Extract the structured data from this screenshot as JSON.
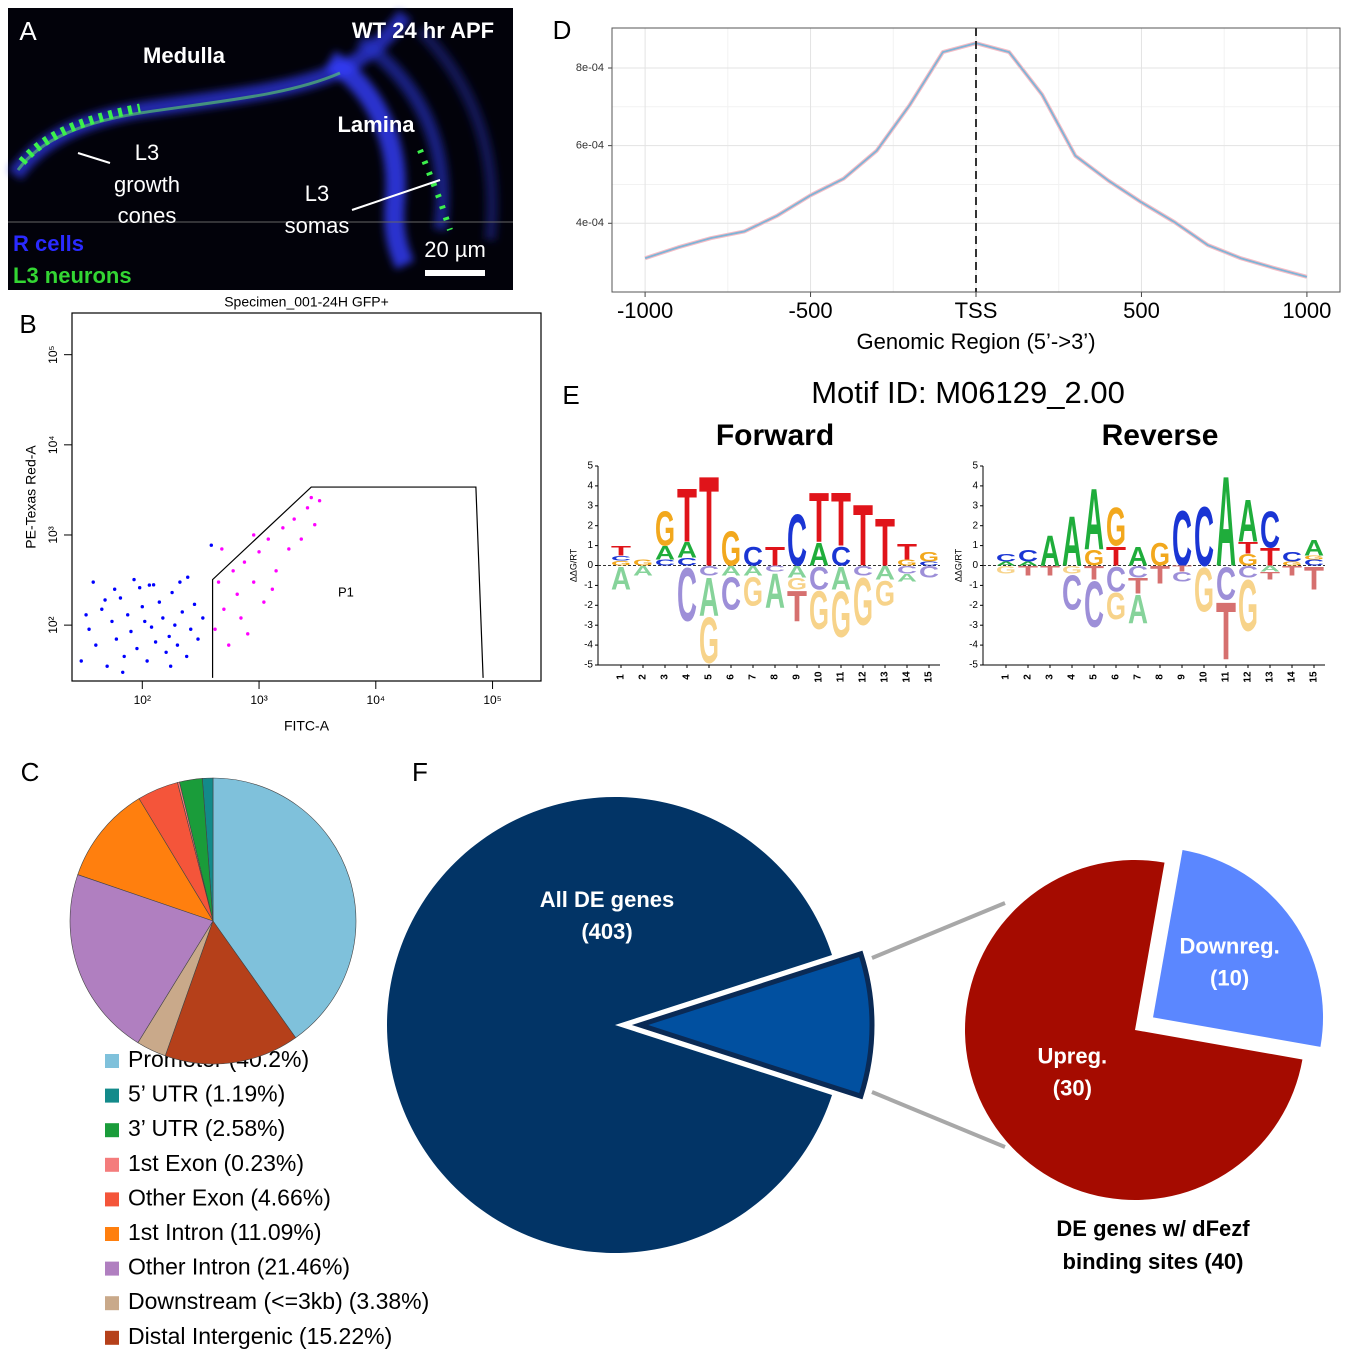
{
  "panel_labels": [
    "A",
    "B",
    "C",
    "D",
    "E",
    "F"
  ],
  "micrograph": {
    "condition": "WT 24 hr APF",
    "regions": [
      "Medulla",
      "Lamina"
    ],
    "annotations": [
      [
        "L3",
        "growth",
        "cones"
      ],
      [
        "L3",
        "somas"
      ]
    ],
    "channels": [
      {
        "name": "R cells",
        "color": "#2a2aff"
      },
      {
        "name": "L3 neurons",
        "color": "#33d633"
      }
    ],
    "scale_bar": "20 µm"
  },
  "motif_title": "Motif ID: M06129_2.00",
  "chart_data": [
    {
      "type": "scatter",
      "title": "Specimen_001-24H GFP+",
      "x_label": "FITC-A",
      "y_label": "PE-Texas Red-A",
      "log_x": true,
      "log_y": true,
      "xlim": [
        25,
        260000
      ],
      "ylim": [
        24,
        290000
      ],
      "xticks": [
        {
          "value": 100,
          "label": "10²"
        },
        {
          "value": 1000,
          "label": "10³"
        },
        {
          "value": 10000,
          "label": "10⁴"
        },
        {
          "value": 100000,
          "label": "10⁵"
        }
      ],
      "yticks": [
        {
          "value": 100,
          "label": "10²"
        },
        {
          "value": 1000,
          "label": "10³"
        },
        {
          "value": 10000,
          "label": "10⁴"
        },
        {
          "value": 100000,
          "label": "10⁵"
        }
      ],
      "series": [
        {
          "color": "#0000ff",
          "x": [
            30,
            35,
            40,
            45,
            50,
            55,
            60,
            65,
            70,
            75,
            80,
            90,
            95,
            100,
            110,
            120,
            130,
            140,
            150,
            160,
            170,
            180,
            190,
            200,
            220,
            240,
            260,
            280,
            300,
            330,
            38,
            58,
            85,
            125,
            33,
            48,
            68,
            105,
            175,
            210,
            245,
            390,
            115
          ],
          "y": [
            40,
            90,
            60,
            150,
            35,
            110,
            70,
            200,
            45,
            130,
            85,
            55,
            260,
            160,
            40,
            95,
            65,
            180,
            120,
            50,
            75,
            230,
            100,
            60,
            140,
            45,
            90,
            170,
            70,
            120,
            300,
            250,
            320,
            280,
            130,
            190,
            30,
            110,
            35,
            300,
            340,
            770,
            278
          ]
        },
        {
          "color": "#ff00ff",
          "x": [
            420,
            450,
            500,
            550,
            600,
            650,
            700,
            750,
            800,
            900,
            1000,
            1100,
            1200,
            1400,
            1600,
            1800,
            2000,
            2300,
            2600,
            3000,
            3300,
            2800,
            1300,
            480,
            900
          ],
          "y": [
            90,
            300,
            150,
            60,
            400,
            220,
            120,
            500,
            80,
            300,
            650,
            180,
            900,
            400,
            1200,
            700,
            1500,
            900,
            2000,
            1300,
            2400,
            2600,
            250,
            700,
            1000
          ]
        }
      ],
      "gate": {
        "label": "P1",
        "x": [
          400,
          400,
          2800,
          72000,
          83000
        ],
        "y": [
          26,
          320,
          3400,
          3400,
          26
        ]
      }
    },
    {
      "type": "pie",
      "categories": [
        "Promoter",
        "5’ UTR",
        "3’ UTR",
        "1st Exon",
        "Other Exon",
        "1st Intron",
        "Other Intron",
        "Downstream (<=3kb)",
        "Distal Intergenic"
      ],
      "values": [
        40.2,
        1.19,
        2.58,
        0.23,
        4.66,
        11.09,
        21.46,
        3.38,
        15.22
      ],
      "value_labels": [
        "(40.2%)",
        "(1.19%)",
        "(2.58%)",
        "(0.23%)",
        "(4.66%)",
        "(11.09%)",
        "(21.46%)",
        "(3.38%)",
        "(15.22%)"
      ],
      "colors": [
        "#7fc1db",
        "#138a8a",
        "#1a9c3a",
        "#f47c7c",
        "#f4553a",
        "#ff7f0e",
        "#b07fc0",
        "#c9a98a",
        "#b5401a"
      ]
    },
    {
      "type": "line",
      "x_label": "Genomic Region (5’->3’)",
      "xlim": [
        -1100,
        1100
      ],
      "ylim": [
        0.000223,
        0.000903
      ],
      "xticks": [
        -1000,
        -500,
        {
          "value": 0,
          "label": "TSS"
        },
        500,
        1000
      ],
      "yticks": [
        {
          "value": 0.0004,
          "label": "4e-04"
        },
        {
          "value": 0.0006,
          "label": "6e-04"
        },
        {
          "value": 0.0008,
          "label": "8e-04"
        }
      ],
      "grid": true,
      "vline": 0,
      "x": [
        -1000,
        -900,
        -800,
        -700,
        -600,
        -500,
        -400,
        -300,
        -200,
        -100,
        0,
        100,
        200,
        300,
        400,
        500,
        600,
        700,
        800,
        900,
        1000
      ],
      "series": [
        {
          "color": "#7fb4d6",
          "values": [
            0.00031,
            0.000338,
            0.000362,
            0.000379,
            0.00042,
            0.000472,
            0.000515,
            0.000587,
            0.000705,
            0.000841,
            0.000864,
            0.000841,
            0.000731,
            0.000574,
            0.00051,
            0.000454,
            0.000403,
            0.000344,
            0.00031,
            0.000285,
            0.000262
          ]
        }
      ]
    },
    {
      "type": "logo",
      "title": "Forward",
      "y_label": "ΔΔG/RT",
      "ylim": [
        -5,
        5
      ],
      "yticks": [
        -5,
        -4,
        -3,
        -2,
        -1,
        0,
        1,
        2,
        3,
        4,
        5
      ],
      "xticks": [
        1,
        2,
        3,
        4,
        5,
        6,
        7,
        8,
        9,
        10,
        11,
        12,
        13,
        14,
        15
      ],
      "letter_colors": {
        "A": "#1fad3b",
        "C": "#1a35d4",
        "G": "#f2a81d",
        "T": "#e0141a"
      },
      "negative_letter_colors": {
        "A": "#86d39a",
        "C": "#9d8fd8",
        "G": "#f7d38a",
        "T": "#d6706f"
      },
      "positions": [
        [
          {
            "letter": "G",
            "value": 0.25
          },
          {
            "letter": "C",
            "value": 0.25
          },
          {
            "letter": "T",
            "value": 0.5
          },
          {
            "letter": "A",
            "value": -1.2
          }
        ],
        [
          {
            "letter": "G",
            "value": 0.3
          },
          {
            "letter": "A",
            "value": -0.5
          }
        ],
        [
          {
            "letter": "C",
            "value": 0.3
          },
          {
            "letter": "A",
            "value": 0.7
          },
          {
            "letter": "G",
            "value": 1.8
          }
        ],
        [
          {
            "letter": "C",
            "value": 0.4
          },
          {
            "letter": "A",
            "value": 0.8
          },
          {
            "letter": "T",
            "value": 2.8
          },
          {
            "letter": "C",
            "value": -2.8
          }
        ],
        [
          {
            "letter": "T",
            "value": 4.7
          },
          {
            "letter": "C",
            "value": -0.5
          },
          {
            "letter": "A",
            "value": -2
          },
          {
            "letter": "G",
            "value": -2.4
          }
        ],
        [
          {
            "letter": "G",
            "value": 1.8
          },
          {
            "letter": "A",
            "value": -0.5
          },
          {
            "letter": "C",
            "value": -1.7
          }
        ],
        [
          {
            "letter": "C",
            "value": 1
          },
          {
            "letter": "A",
            "value": -0.5
          },
          {
            "letter": "G",
            "value": -1.5
          }
        ],
        [
          {
            "letter": "T",
            "value": 1
          },
          {
            "letter": "C",
            "value": -0.3
          },
          {
            "letter": "A",
            "value": -1.8
          }
        ],
        [
          {
            "letter": "C",
            "value": 2.7
          },
          {
            "letter": "A",
            "value": -0.6
          },
          {
            "letter": "G",
            "value": -0.6
          },
          {
            "letter": "T",
            "value": -1.6
          }
        ],
        [
          {
            "letter": "A",
            "value": 1.2
          },
          {
            "letter": "T",
            "value": 2.6
          },
          {
            "letter": "C",
            "value": -1.2
          },
          {
            "letter": "G",
            "value": -2
          }
        ],
        [
          {
            "letter": "C",
            "value": 1
          },
          {
            "letter": "T",
            "value": 2.8
          },
          {
            "letter": "A",
            "value": -1.2
          },
          {
            "letter": "G",
            "value": -2.4
          }
        ],
        [
          {
            "letter": "T",
            "value": 3.2
          },
          {
            "letter": "C",
            "value": -0.5
          },
          {
            "letter": "G",
            "value": -2.5
          }
        ],
        [
          {
            "letter": "T",
            "value": 2.5
          },
          {
            "letter": "A",
            "value": -0.7
          },
          {
            "letter": "G",
            "value": -1.3
          }
        ],
        [
          {
            "letter": "G",
            "value": 0.3
          },
          {
            "letter": "T",
            "value": 0.8
          },
          {
            "letter": "C",
            "value": -0.4
          },
          {
            "letter": "A",
            "value": -0.4
          }
        ],
        [
          {
            "letter": "C",
            "value": 0.2
          },
          {
            "letter": "G",
            "value": 0.5
          },
          {
            "letter": "C",
            "value": -0.6
          }
        ]
      ]
    },
    {
      "type": "logo",
      "title": "Reverse",
      "y_label": "ΔΔG/RT",
      "ylim": [
        -5,
        5
      ],
      "yticks": [
        -5,
        -4,
        -3,
        -2,
        -1,
        0,
        1,
        2,
        3,
        4,
        5
      ],
      "xticks": [
        1,
        2,
        3,
        4,
        5,
        6,
        7,
        8,
        9,
        10,
        11,
        12,
        13,
        14,
        15
      ],
      "letter_colors": {
        "A": "#1fad3b",
        "C": "#1a35d4",
        "G": "#f2a81d",
        "T": "#e0141a"
      },
      "negative_letter_colors": {
        "A": "#86d39a",
        "C": "#9d8fd8",
        "G": "#f7d38a",
        "T": "#d6706f"
      },
      "positions": [
        [
          {
            "letter": "A",
            "value": 0.2
          },
          {
            "letter": "C",
            "value": 0.4
          },
          {
            "letter": "G",
            "value": -0.4
          }
        ],
        [
          {
            "letter": "A",
            "value": 0.2
          },
          {
            "letter": "C",
            "value": 0.6
          },
          {
            "letter": "T",
            "value": -0.5
          }
        ],
        [
          {
            "letter": "A",
            "value": 1.6
          },
          {
            "letter": "T",
            "value": -0.5
          }
        ],
        [
          {
            "letter": "A",
            "value": 2.6
          },
          {
            "letter": "G",
            "value": -0.4
          },
          {
            "letter": "C",
            "value": -1.8
          }
        ],
        [
          {
            "letter": "G",
            "value": 0.8
          },
          {
            "letter": "A",
            "value": 3.2
          },
          {
            "letter": "T",
            "value": -0.7
          },
          {
            "letter": "C",
            "value": -2.4
          }
        ],
        [
          {
            "letter": "T",
            "value": 1
          },
          {
            "letter": "G",
            "value": 2
          },
          {
            "letter": "C",
            "value": -1.3
          },
          {
            "letter": "G",
            "value": -1.4
          }
        ],
        [
          {
            "letter": "A",
            "value": 1
          },
          {
            "letter": "C",
            "value": -0.6
          },
          {
            "letter": "T",
            "value": -0.8
          },
          {
            "letter": "A",
            "value": -1.5
          }
        ],
        [
          {
            "letter": "G",
            "value": 1.2
          },
          {
            "letter": "T",
            "value": -0.9
          }
        ],
        [
          {
            "letter": "C",
            "value": 2.9
          },
          {
            "letter": "T",
            "value": -0.3
          },
          {
            "letter": "C",
            "value": -0.5
          }
        ],
        [
          {
            "letter": "C",
            "value": 3.1
          },
          {
            "letter": "G",
            "value": -2.3
          }
        ],
        [
          {
            "letter": "A",
            "value": 4.7
          },
          {
            "letter": "C",
            "value": -1.7
          },
          {
            "letter": "T",
            "value": -3
          }
        ],
        [
          {
            "letter": "G",
            "value": 0.6
          },
          {
            "letter": "T",
            "value": 0.6
          },
          {
            "letter": "A",
            "value": 2.2
          },
          {
            "letter": "C",
            "value": -0.6
          },
          {
            "letter": "G",
            "value": -2.7
          }
        ],
        [
          {
            "letter": "T",
            "value": 0.9
          },
          {
            "letter": "C",
            "value": 1.9
          },
          {
            "letter": "A",
            "value": -0.3
          },
          {
            "letter": "T",
            "value": -0.4
          }
        ],
        [
          {
            "letter": "G",
            "value": 0.2
          },
          {
            "letter": "C",
            "value": 0.5
          },
          {
            "letter": "T",
            "value": -0.5
          }
        ],
        [
          {
            "letter": "C",
            "value": 0.3
          },
          {
            "letter": "G",
            "value": 0.2
          },
          {
            "letter": "A",
            "value": 0.8
          },
          {
            "letter": "T",
            "value": -1.2
          }
        ]
      ]
    },
    {
      "type": "pie_of_pie",
      "main": {
        "label": "All DE genes",
        "value": 403,
        "value_label": "(403)",
        "color": "#023466",
        "slice_value": 40,
        "slice_color": "#0150a0"
      },
      "sub": {
        "title_lines": [
          "DE genes w/ dFezf",
          "binding sites (40)"
        ],
        "categories": [
          "Upreg.",
          "Downreg."
        ],
        "values": [
          30,
          10
        ],
        "value_labels": [
          "(30)",
          "(10)"
        ],
        "colors": [
          "#a50b00",
          "#5b87ff"
        ]
      }
    }
  ]
}
